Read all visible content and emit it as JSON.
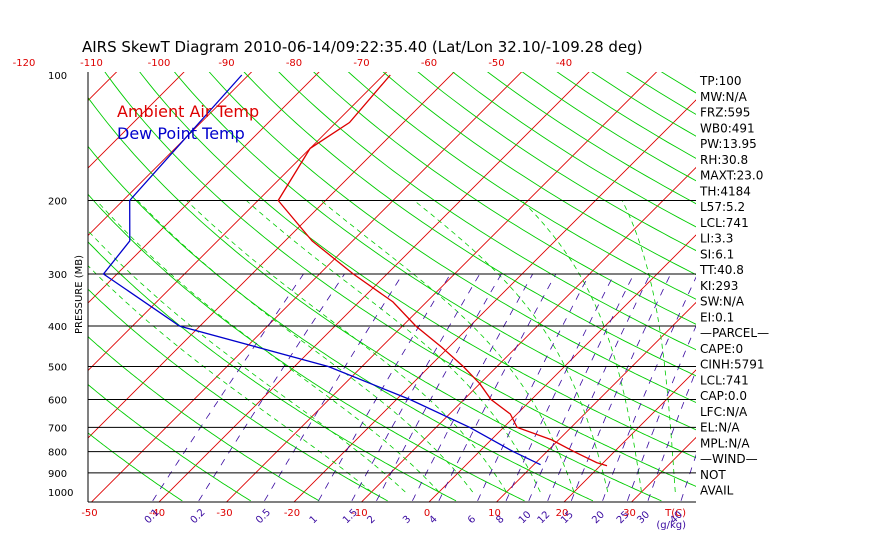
{
  "chart_data": {
    "type": "skewt",
    "title": "AIRS SkewT Diagram 2010-06-14/09:22:35.40 (Lat/Lon 32.10/-109.28 deg)",
    "ylabel": "PRESSURE (MB)",
    "xlabel_bottom": "T(C)",
    "mixing_ratio_unit": "(g/kg)",
    "colors": {
      "air": "#dd0000",
      "dew": "#0000cc",
      "isotherm": "#dd0000",
      "dry_adiabat": "#00cc00",
      "moist_adiabat": "#00cc00",
      "mixing_ratio": "#3a0aa0",
      "isobar": "#000000"
    },
    "legend": [
      {
        "name": "Ambient Air Temp",
        "color": "#dd0000"
      },
      {
        "name": "Dew Point Temp",
        "color": "#0000cc"
      }
    ],
    "pressure_ticks": [
      100,
      200,
      300,
      400,
      500,
      600,
      700,
      800,
      900,
      1000
    ],
    "temp_ticks_top": [
      -120,
      -110,
      -100,
      -90,
      -80,
      -70,
      -60,
      -50,
      -40
    ],
    "temp_ticks_bottom": [
      -50,
      -40,
      -30,
      -20,
      -10,
      0,
      10,
      20,
      30
    ],
    "mixing_ratio_labels": [
      0.1,
      0.2,
      0.5,
      1,
      1.5,
      2,
      3,
      4,
      6,
      8,
      10,
      12,
      15,
      20,
      25,
      30,
      40
    ],
    "series": [
      {
        "name": "Ambient Air Temp",
        "points": [
          {
            "p": 100,
            "t": -69
          },
          {
            "p": 130,
            "t": -68
          },
          {
            "p": 150,
            "t": -70
          },
          {
            "p": 200,
            "t": -67
          },
          {
            "p": 250,
            "t": -56
          },
          {
            "p": 300,
            "t": -45
          },
          {
            "p": 350,
            "t": -35
          },
          {
            "p": 400,
            "t": -28
          },
          {
            "p": 450,
            "t": -21
          },
          {
            "p": 500,
            "t": -15
          },
          {
            "p": 550,
            "t": -10
          },
          {
            "p": 600,
            "t": -6
          },
          {
            "p": 650,
            "t": -1
          },
          {
            "p": 700,
            "t": 2
          },
          {
            "p": 750,
            "t": 9
          },
          {
            "p": 800,
            "t": 14
          },
          {
            "p": 850,
            "t": 19
          },
          {
            "p": 865,
            "t": 21
          }
        ]
      },
      {
        "name": "Dew Point Temp",
        "points": [
          {
            "p": 100,
            "t": -91
          },
          {
            "p": 200,
            "t": -89
          },
          {
            "p": 250,
            "t": -83
          },
          {
            "p": 300,
            "t": -82
          },
          {
            "p": 400,
            "t": -63
          },
          {
            "p": 500,
            "t": -35
          },
          {
            "p": 600,
            "t": -18
          },
          {
            "p": 700,
            "t": -5
          },
          {
            "p": 800,
            "t": 5
          },
          {
            "p": 860,
            "t": 11
          }
        ]
      }
    ],
    "indices": [
      "TP:100",
      "MW:N/A",
      "FRZ:595",
      "WB0:491",
      "PW:13.95",
      "RH:30.8",
      "MAXT:23.0",
      "TH:4184",
      "L57:5.2",
      "LCL:741",
      "LI:3.3",
      "SI:6.1",
      "TT:40.8",
      "KI:293",
      "SW:N/A",
      "EI:0.1",
      "—PARCEL—",
      "CAPE:0",
      "CINH:5791",
      "LCL:741",
      "CAP:0.0",
      "LFC:N/A",
      "EL:N/A",
      "MPL:N/A",
      "—WIND—",
      "NOT",
      "AVAIL"
    ]
  }
}
